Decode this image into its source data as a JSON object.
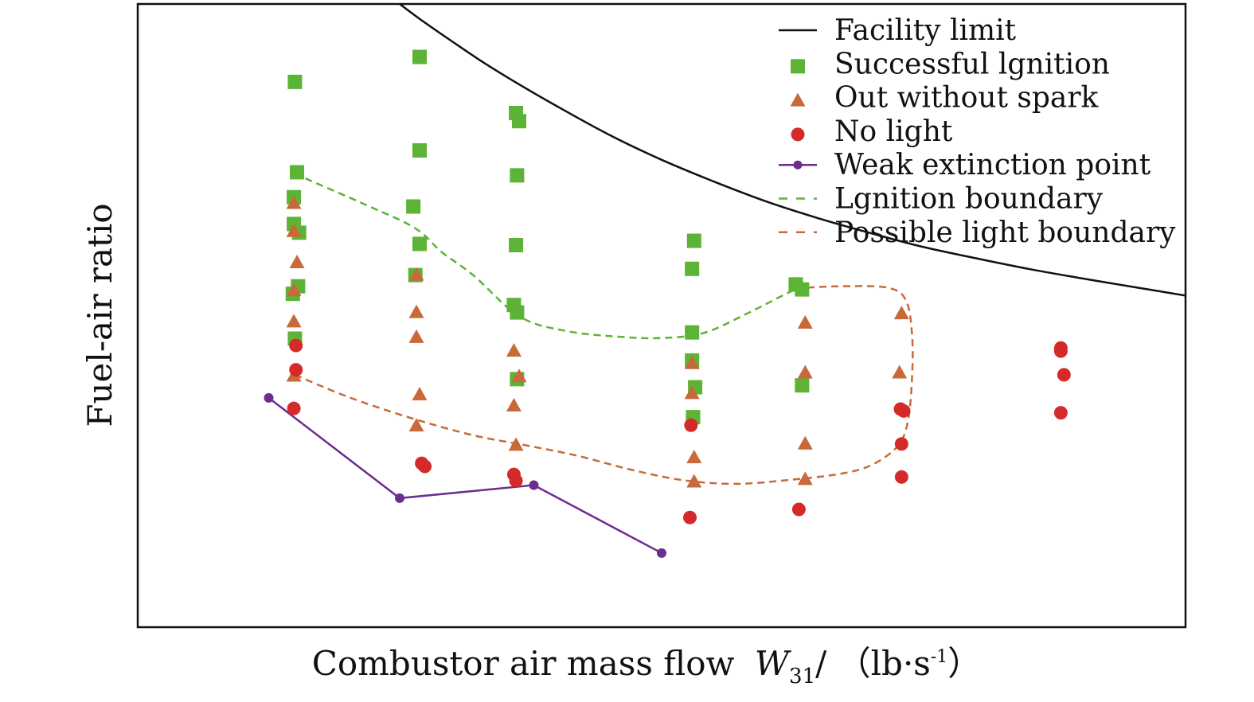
{
  "chart_data": {
    "type": "scatter",
    "title": "",
    "xlabel": {
      "main": "Combustor air mass flow",
      "symbol": "W",
      "subscript": "31",
      "unit_pre": "/ （lb·s",
      "unit_sup": "-1",
      "unit_post": "）"
    },
    "ylabel": "Fuel-air ratio",
    "xlim": [
      0,
      100
    ],
    "ylim": [
      0,
      100
    ],
    "ticks_shown": false,
    "grid": false,
    "legend_position": "top-right",
    "colors": {
      "facility": "#111111",
      "success": "#5cb335",
      "out": "#c8693a",
      "nolight": "#d42a2a",
      "weak": "#6b2d8f",
      "ign_boundary": "#5cb335",
      "light_boundary": "#c8693a"
    },
    "series": [
      {
        "name": "Facility limit",
        "kind": "curve",
        "points": [
          [
            25,
            100
          ],
          [
            27,
            97.5
          ],
          [
            30,
            94
          ],
          [
            33,
            90.6
          ],
          [
            36,
            87.5
          ],
          [
            40,
            83.6
          ],
          [
            45,
            79
          ],
          [
            50,
            75
          ],
          [
            55,
            71.5
          ],
          [
            60,
            68.3
          ],
          [
            65,
            65.6
          ],
          [
            70,
            63.2
          ],
          [
            75,
            61
          ],
          [
            80,
            59.2
          ],
          [
            85,
            57.5
          ],
          [
            90,
            56
          ],
          [
            95,
            54.6
          ],
          [
            100,
            53.2
          ]
        ]
      },
      {
        "name": "Successful lgnition",
        "kind": "square",
        "points": [
          [
            15,
            87.5
          ],
          [
            15.2,
            73
          ],
          [
            14.9,
            69
          ],
          [
            14.9,
            64.7
          ],
          [
            15.4,
            63.3
          ],
          [
            15.3,
            54.7
          ],
          [
            14.8,
            53.5
          ],
          [
            15,
            46.3
          ],
          [
            26.9,
            91.5
          ],
          [
            26.9,
            76.5
          ],
          [
            26.3,
            67.5
          ],
          [
            26.9,
            61.5
          ],
          [
            26.5,
            56.5
          ],
          [
            36.1,
            82.5
          ],
          [
            36.4,
            81.2
          ],
          [
            36.2,
            72.5
          ],
          [
            36.1,
            61.3
          ],
          [
            35.9,
            51.7
          ],
          [
            36.2,
            50.5
          ],
          [
            36.2,
            39.8
          ],
          [
            53.1,
            62
          ],
          [
            52.9,
            57.5
          ],
          [
            52.9,
            47.3
          ],
          [
            52.9,
            42.8
          ],
          [
            53.2,
            38.5
          ],
          [
            53,
            33.7
          ],
          [
            62.8,
            55
          ],
          [
            63.4,
            54.2
          ],
          [
            63.4,
            38.8
          ]
        ]
      },
      {
        "name": "Out without spark",
        "kind": "triangle",
        "points": [
          [
            14.9,
            68
          ],
          [
            14.9,
            63.5
          ],
          [
            15.2,
            58.5
          ],
          [
            14.9,
            54
          ],
          [
            14.9,
            49
          ],
          [
            14.9,
            40.3
          ],
          [
            26.6,
            56.5
          ],
          [
            26.6,
            50.5
          ],
          [
            26.6,
            46.5
          ],
          [
            26.9,
            37.3
          ],
          [
            26.6,
            32.3
          ],
          [
            35.9,
            44.3
          ],
          [
            36.4,
            40.2
          ],
          [
            35.9,
            35.5
          ],
          [
            36.1,
            29.2
          ],
          [
            52.9,
            42.3
          ],
          [
            52.9,
            37.5
          ],
          [
            53.1,
            27.2
          ],
          [
            53.1,
            23.3
          ],
          [
            63.7,
            48.8
          ],
          [
            63.7,
            40.8
          ],
          [
            63.7,
            29.4
          ],
          [
            63.7,
            23.7
          ],
          [
            72.9,
            50.3
          ],
          [
            72.7,
            40.8
          ]
        ]
      },
      {
        "name": "No light",
        "kind": "circle",
        "points": [
          [
            15.1,
            45.2
          ],
          [
            15.1,
            41.3
          ],
          [
            14.9,
            35.1
          ],
          [
            27.1,
            26.3
          ],
          [
            27.4,
            25.8
          ],
          [
            35.9,
            24.5
          ],
          [
            36.1,
            23.5
          ],
          [
            52.8,
            32.4
          ],
          [
            52.7,
            17.6
          ],
          [
            63.1,
            18.9
          ],
          [
            72.8,
            35
          ],
          [
            73.1,
            34.7
          ],
          [
            72.9,
            29.4
          ],
          [
            72.9,
            24.1
          ],
          [
            88.1,
            44.8
          ],
          [
            88.1,
            44.3
          ],
          [
            88.4,
            40.5
          ],
          [
            88.1,
            34.4
          ]
        ]
      },
      {
        "name": "Weak extinction point",
        "kind": "polyline",
        "points": [
          [
            12.5,
            36.8
          ],
          [
            25,
            20.7
          ],
          [
            37.8,
            22.8
          ],
          [
            50,
            11.9
          ]
        ]
      },
      {
        "name": "Lgnition boundary",
        "kind": "dashed",
        "points": [
          [
            16,
            72
          ],
          [
            22,
            67.6
          ],
          [
            26.5,
            64
          ],
          [
            29,
            60.2
          ],
          [
            32,
            56.5
          ],
          [
            36.5,
            49.8
          ],
          [
            41,
            47.5
          ],
          [
            46,
            46.6
          ],
          [
            50,
            46.4
          ],
          [
            54,
            47.2
          ],
          [
            58,
            50.2
          ],
          [
            62,
            53.6
          ],
          [
            63.5,
            54.7
          ]
        ]
      },
      {
        "name": "Possible light boundary",
        "kind": "dashed",
        "points": [
          [
            15,
            40.5
          ],
          [
            20,
            37
          ],
          [
            26,
            33.6
          ],
          [
            32,
            30.8
          ],
          [
            37,
            29.2
          ],
          [
            42,
            27.5
          ],
          [
            47,
            25.3
          ],
          [
            52,
            23.6
          ],
          [
            57,
            23
          ],
          [
            62,
            23.6
          ],
          [
            67,
            24.6
          ],
          [
            70,
            26
          ],
          [
            72.5,
            29
          ],
          [
            73.5,
            33
          ],
          [
            73.9,
            40
          ],
          [
            73.9,
            47
          ],
          [
            73.3,
            52.5
          ],
          [
            71.5,
            54.5
          ],
          [
            67,
            54.7
          ],
          [
            64,
            54.5
          ]
        ]
      }
    ]
  }
}
